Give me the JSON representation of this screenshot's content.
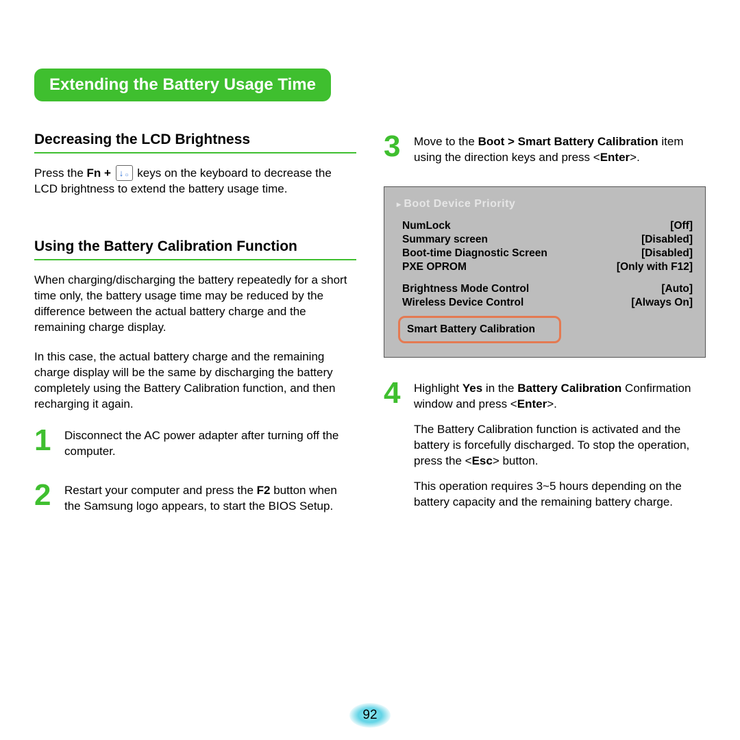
{
  "main_title": "Extending the Battery Usage Time",
  "left": {
    "section1_title": "Decreasing the LCD Brightness",
    "section1_text_pre": "Press the ",
    "section1_text_fn": "Fn + ",
    "section1_text_post": " keys on the keyboard to decrease the LCD brightness to extend the battery usage time.",
    "section2_title": "Using the Battery Calibration Function",
    "section2_p1": "When charging/discharging the battery repeatedly for a short time only, the battery usage time may be reduced by the difference between the actual battery charge and the remaining charge display.",
    "section2_p2": "In this case, the actual battery charge and the remaining charge display will be the same by discharging the battery completely using the Battery Calibration function, and then recharging it again.",
    "step1_num": "1",
    "step1_text": "Disconnect the AC power adapter after turning off the computer.",
    "step2_num": "2",
    "step2_pre": "Restart your computer and press the ",
    "step2_bold": "F2",
    "step2_post": " button when the Samsung logo appears, to start the BIOS Setup."
  },
  "right": {
    "step3_num": "3",
    "step3_pre": "Move to the ",
    "step3_bold": "Boot > Smart Battery Calibration",
    "step3_mid": " item using the direction keys and press <",
    "step3_bold2": "Enter",
    "step3_post": ">.",
    "bios": {
      "header": "Boot Device Priority",
      "rows": [
        {
          "label": "NumLock",
          "value": "[Off]"
        },
        {
          "label": "Summary screen",
          "value": "[Disabled]"
        },
        {
          "label": "Boot-time Diagnostic Screen",
          "value": "[Disabled]"
        },
        {
          "label": "PXE OPROM",
          "value": "[Only with F12]"
        }
      ],
      "rows2": [
        {
          "label": "Brightness Mode Control",
          "value": "[Auto]"
        },
        {
          "label": "Wireless Device Control",
          "value": "[Always On]"
        }
      ],
      "highlight": "Smart Battery Calibration"
    },
    "step4_num": "4",
    "step4_p1_pre": "Highlight ",
    "step4_p1_b1": "Yes",
    "step4_p1_mid": " in the ",
    "step4_p1_b2": "Battery Calibration",
    "step4_p1_mid2": " Confirmation   window and press <",
    "step4_p1_b3": "Enter",
    "step4_p1_post": ">.",
    "step4_p2_pre": "The Battery Calibration function is activated and the battery is forcefully discharged. To stop the operation, press the <",
    "step4_p2_b": "Esc",
    "step4_p2_post": "> button.",
    "step4_p3": "This operation requires 3~5 hours depending on the battery capacity and the remaining battery charge."
  },
  "page_number": "92"
}
